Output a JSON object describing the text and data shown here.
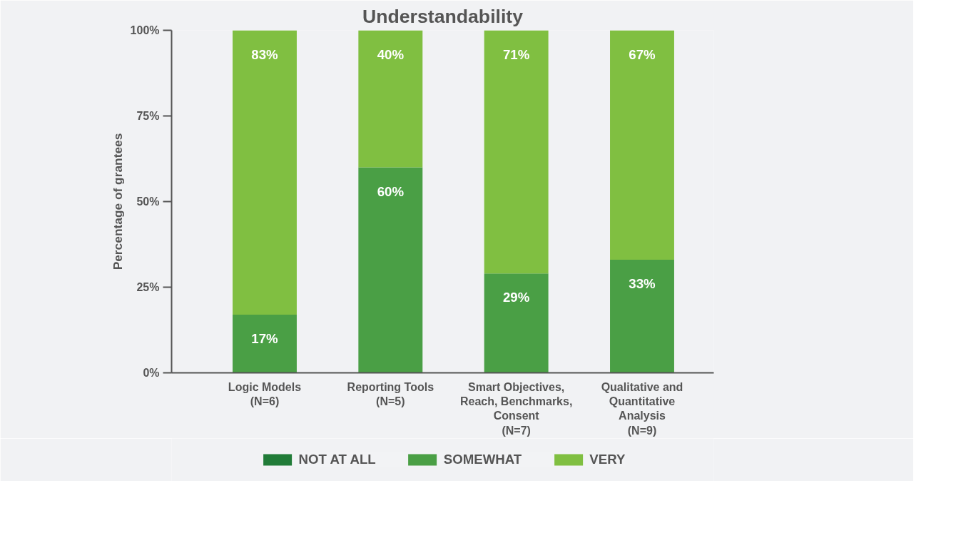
{
  "chart_data": {
    "type": "bar",
    "title": "Understandability",
    "ylabel": "Percentage of grantees",
    "categories": [
      "Logic Models\n(N=6)",
      "Reporting Tools\n(N=5)",
      "Smart Objectives,\nReach, Benchmarks,\nConsent\n(N=7)",
      "Qualitative and\nQuantitative\nAnalysis\n(N=9)"
    ],
    "stacked": true,
    "series": [
      {
        "name": "NOT AT ALL",
        "color": "#217c38",
        "values": [
          null,
          null,
          null,
          null
        ]
      },
      {
        "name": "SOMEWHAT",
        "color": "#4a9f45",
        "values": [
          17,
          60,
          29,
          33
        ],
        "value_labels": [
          "17%",
          "60%",
          "29%",
          "33%"
        ]
      },
      {
        "name": "VERY",
        "color": "#80bf41",
        "values": [
          83,
          40,
          71,
          67
        ],
        "value_labels": [
          "83%",
          "40%",
          "71%",
          "67%"
        ]
      }
    ],
    "ylim": [
      0,
      100
    ],
    "yticks": [
      {
        "value": 0,
        "label": "0%"
      },
      {
        "value": 25,
        "label": "25%"
      },
      {
        "value": 50,
        "label": "50%"
      },
      {
        "value": 75,
        "label": "75%"
      },
      {
        "value": 100,
        "label": "100%"
      }
    ],
    "grid": false,
    "legend": "bottom"
  }
}
